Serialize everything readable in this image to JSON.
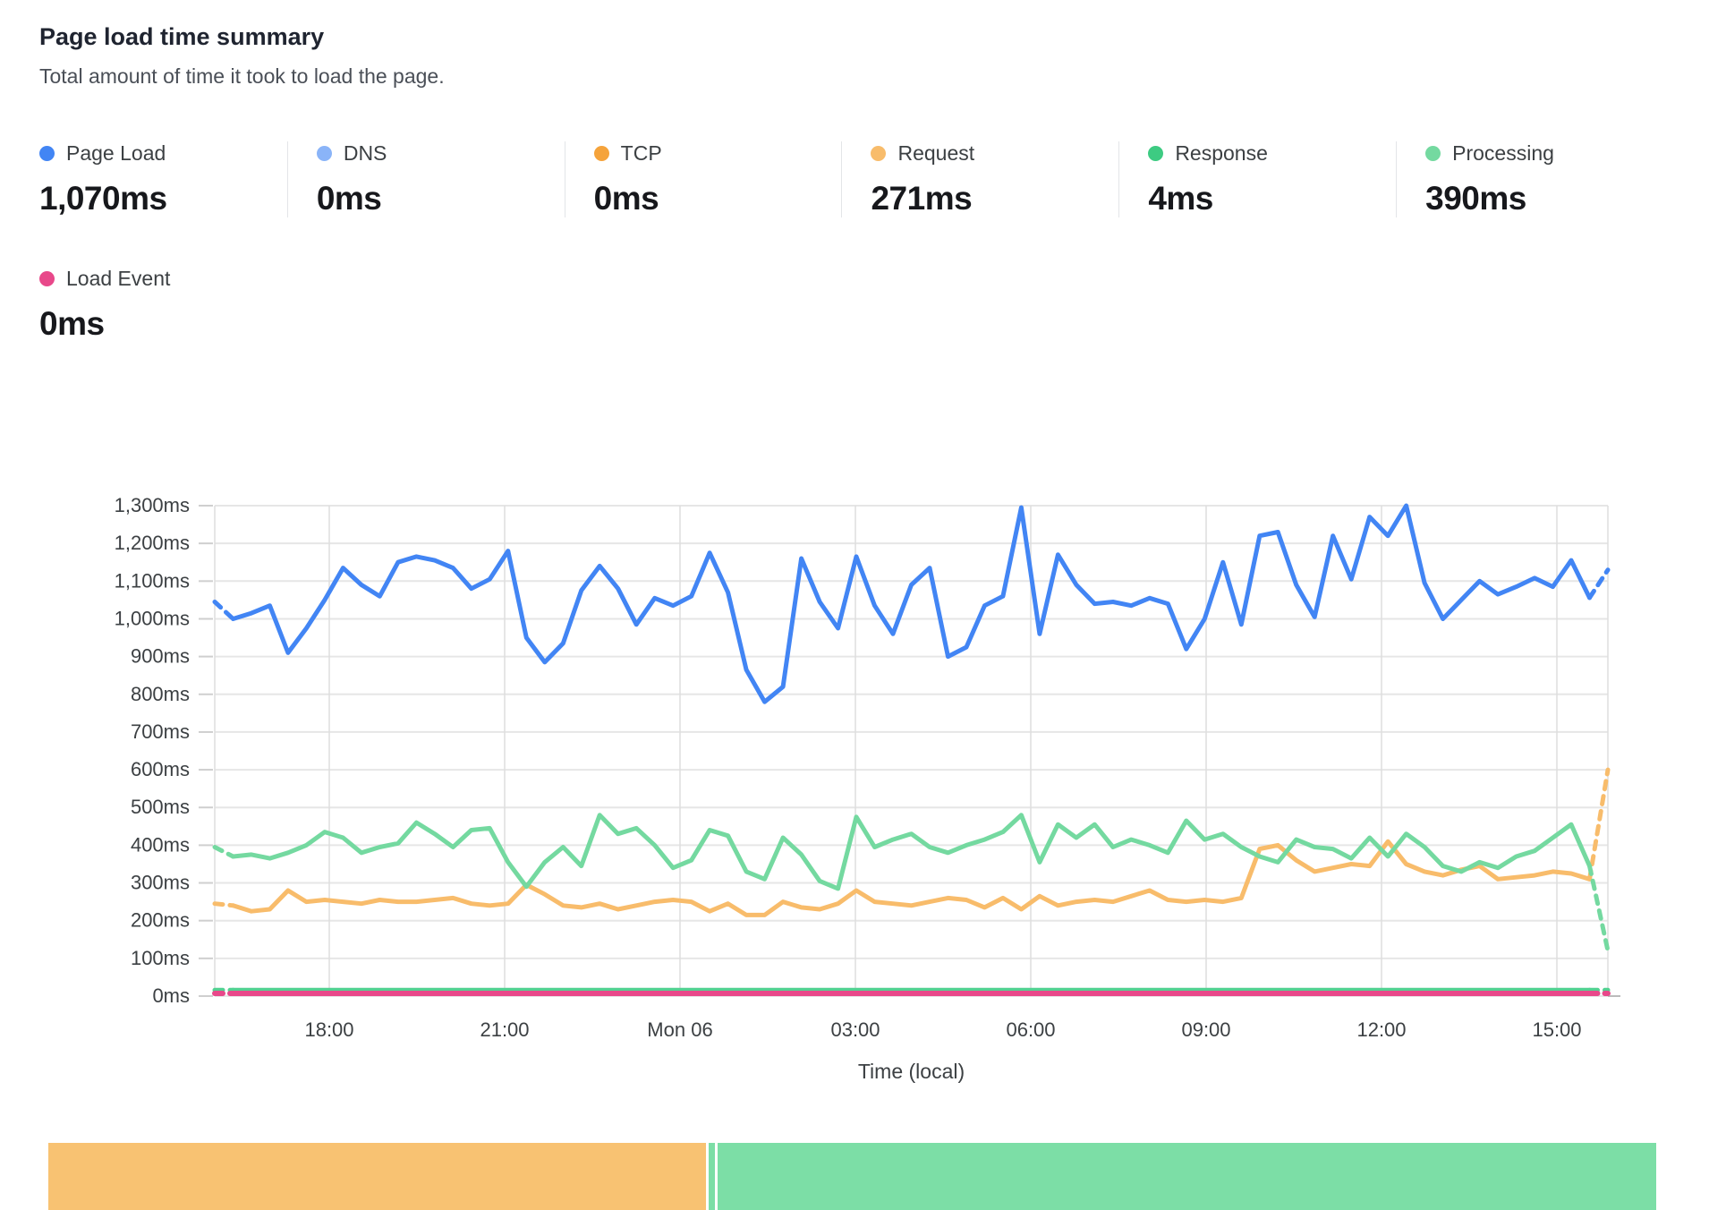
{
  "header": {
    "title": "Page load time summary",
    "subtitle": "Total amount of time it took to load the page."
  },
  "metrics_row1": [
    {
      "label": "Page Load",
      "value": "1,070ms",
      "color": "#4285F4"
    },
    {
      "label": "DNS",
      "value": "0ms",
      "color": "#8AB4F8"
    },
    {
      "label": "TCP",
      "value": "0ms",
      "color": "#F5A33B"
    },
    {
      "label": "Request",
      "value": "271ms",
      "color": "#F8BC6B"
    },
    {
      "label": "Response",
      "value": "4ms",
      "color": "#3DCB82"
    },
    {
      "label": "Processing",
      "value": "390ms",
      "color": "#74D9A0"
    }
  ],
  "metrics_row2": [
    {
      "label": "Load Event",
      "value": "0ms",
      "color": "#E8488A"
    }
  ],
  "chart_data": {
    "type": "line",
    "title": "Page load time summary",
    "xlabel": "Time (local)",
    "ylabel": "",
    "ylim": [
      0,
      1300
    ],
    "y_tick_step_ms": 100,
    "ytick_labels": [
      "0ms",
      "100ms",
      "200ms",
      "300ms",
      "400ms",
      "500ms",
      "600ms",
      "700ms",
      "800ms",
      "900ms",
      "1,000ms",
      "1,100ms",
      "1,200ms",
      "1,300ms"
    ],
    "xtick_labels": [
      "18:00",
      "21:00",
      "Mon 06",
      "03:00",
      "06:00",
      "09:00",
      "12:00",
      "15:00"
    ],
    "x_span_hours": 24,
    "x_point_interval_minutes": 20,
    "grid": true,
    "legend_position": "top-metrics",
    "dashed_first_and_last_segment": true,
    "series": [
      {
        "name": "Request",
        "color": "#F8BC6B",
        "values": [
          245,
          240,
          225,
          230,
          280,
          250,
          255,
          250,
          245,
          255,
          250,
          250,
          255,
          260,
          245,
          240,
          245,
          295,
          270,
          240,
          235,
          245,
          230,
          240,
          250,
          255,
          250,
          225,
          245,
          215,
          215,
          250,
          235,
          230,
          245,
          280,
          250,
          245,
          240,
          250,
          260,
          255,
          235,
          260,
          230,
          265,
          240,
          250,
          255,
          250,
          265,
          280,
          255,
          250,
          255,
          250,
          260,
          390,
          400,
          360,
          330,
          340,
          350,
          345,
          410,
          350,
          330,
          320,
          335,
          345,
          310,
          315,
          320,
          330,
          325,
          310,
          600
        ]
      },
      {
        "name": "Processing",
        "color": "#74D9A0",
        "values": [
          395,
          370,
          375,
          365,
          380,
          400,
          435,
          420,
          380,
          395,
          405,
          460,
          430,
          395,
          440,
          445,
          355,
          290,
          355,
          395,
          345,
          480,
          430,
          445,
          400,
          340,
          360,
          440,
          425,
          330,
          310,
          420,
          375,
          305,
          285,
          475,
          395,
          415,
          430,
          395,
          380,
          400,
          415,
          435,
          480,
          355,
          455,
          420,
          455,
          395,
          415,
          400,
          380,
          465,
          415,
          430,
          395,
          370,
          355,
          415,
          395,
          390,
          365,
          420,
          370,
          430,
          395,
          345,
          330,
          355,
          340,
          370,
          385,
          420,
          455,
          345,
          120
        ]
      },
      {
        "name": "Page Load",
        "color": "#4285F4",
        "values": [
          1045,
          1000,
          1015,
          1035,
          910,
          975,
          1050,
          1135,
          1090,
          1060,
          1150,
          1165,
          1155,
          1135,
          1080,
          1105,
          1180,
          950,
          885,
          935,
          1075,
          1140,
          1080,
          985,
          1055,
          1035,
          1060,
          1175,
          1070,
          865,
          780,
          820,
          1160,
          1045,
          975,
          1165,
          1035,
          960,
          1090,
          1135,
          900,
          925,
          1035,
          1060,
          1295,
          960,
          1170,
          1090,
          1040,
          1045,
          1035,
          1055,
          1040,
          920,
          1000,
          1150,
          985,
          1220,
          1230,
          1090,
          1005,
          1220,
          1105,
          1270,
          1220,
          1300,
          1095,
          1000,
          1050,
          1100,
          1065,
          1085,
          1108,
          1085,
          1155,
          1056,
          1130
        ]
      },
      {
        "name": "Response",
        "color": "#52D191",
        "flat_value": 16,
        "points": 77
      },
      {
        "name": "Load Event",
        "color": "#E8488A",
        "flat_value": 7,
        "points": 77
      }
    ]
  },
  "timeline_bar": {
    "segments": [
      {
        "name": "tcp-request-phase",
        "color": "#F8C272",
        "width_fraction": 0.408
      },
      {
        "name": "response-sliver",
        "color": "#7CDEA6",
        "width_fraction": 0.004
      },
      {
        "name": "processing-phase",
        "color": "#7CDEA6",
        "width_fraction": 0.582
      }
    ]
  }
}
